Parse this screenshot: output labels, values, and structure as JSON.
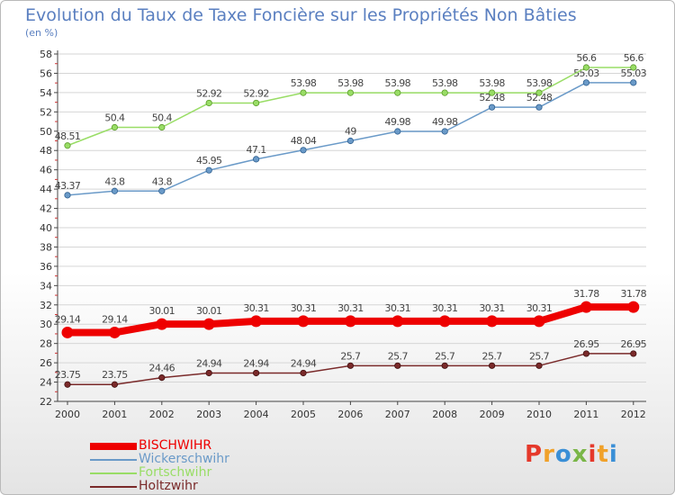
{
  "header": {
    "title": "Evolution du Taux de Taxe Foncière sur les Propriétés Non Bâties",
    "unit": "(en %)"
  },
  "logo": {
    "text": "Proxiti",
    "colors": [
      "#e5392b",
      "#f0a12a",
      "#3a8fd6",
      "#7ab648"
    ]
  },
  "chart_data": {
    "type": "line",
    "title": "Evolution du Taux de Taxe Foncière sur les Propriétés Non Bâties",
    "ylabel": "(en %)",
    "xlabel": "",
    "x": [
      "2000",
      "2001",
      "2002",
      "2003",
      "2004",
      "2005",
      "2006",
      "2007",
      "2008",
      "2009",
      "2010",
      "2011",
      "2012"
    ],
    "ylim": [
      22,
      58
    ],
    "yticks": [
      22,
      24,
      26,
      28,
      30,
      32,
      34,
      36,
      38,
      40,
      42,
      44,
      46,
      48,
      50,
      52,
      54,
      56,
      58
    ],
    "grid": true,
    "legend_position": "bottom-left",
    "series": [
      {
        "name": "BISCHWIHR",
        "color": "#ee0000",
        "values": [
          29.14,
          29.14,
          30.01,
          30.01,
          30.31,
          30.31,
          30.31,
          30.31,
          30.31,
          30.31,
          30.31,
          31.78,
          31.78
        ],
        "labels": [
          "29.14",
          "29.14",
          "30.01",
          "30.01",
          "30.31",
          "30.31",
          "30.31",
          "30.31",
          "30.31",
          "30.31",
          "30.31",
          "31.78",
          "31.78"
        ]
      },
      {
        "name": "Wickerschwihr",
        "color": "#6a9ac8",
        "values": [
          43.37,
          43.8,
          43.8,
          45.95,
          47.1,
          48.04,
          49,
          49.98,
          49.98,
          52.48,
          52.48,
          55.03,
          55.03
        ],
        "labels": [
          "43.37",
          "43.8",
          "43.8",
          "45.95",
          "47.1",
          "48.04",
          "49",
          "49.98",
          "49.98",
          "52.48",
          "52.48",
          "55.03",
          "55.03"
        ]
      },
      {
        "name": "Fortschwihr",
        "color": "#99dd66",
        "values": [
          48.51,
          50.4,
          50.4,
          52.92,
          52.92,
          53.98,
          53.98,
          53.98,
          53.98,
          53.98,
          53.98,
          56.6,
          56.6
        ],
        "labels": [
          "48.51",
          "50.4",
          "50.4",
          "52.92",
          "52.92",
          "53.98",
          "53.98",
          "53.98",
          "53.98",
          "53.98",
          "53.98",
          "56.6",
          "56.6"
        ]
      },
      {
        "name": "Holtzwihr",
        "color": "#7a2a2a",
        "values": [
          23.75,
          23.75,
          24.46,
          24.94,
          24.94,
          24.94,
          25.7,
          25.7,
          25.7,
          25.7,
          25.7,
          26.95,
          26.95
        ],
        "labels": [
          "23.75",
          "23.75",
          "24.46",
          "24.94",
          "24.94",
          "24.94",
          "25.7",
          "25.7",
          "25.7",
          "25.7",
          "25.7",
          "26.95",
          "26.95"
        ]
      }
    ]
  }
}
